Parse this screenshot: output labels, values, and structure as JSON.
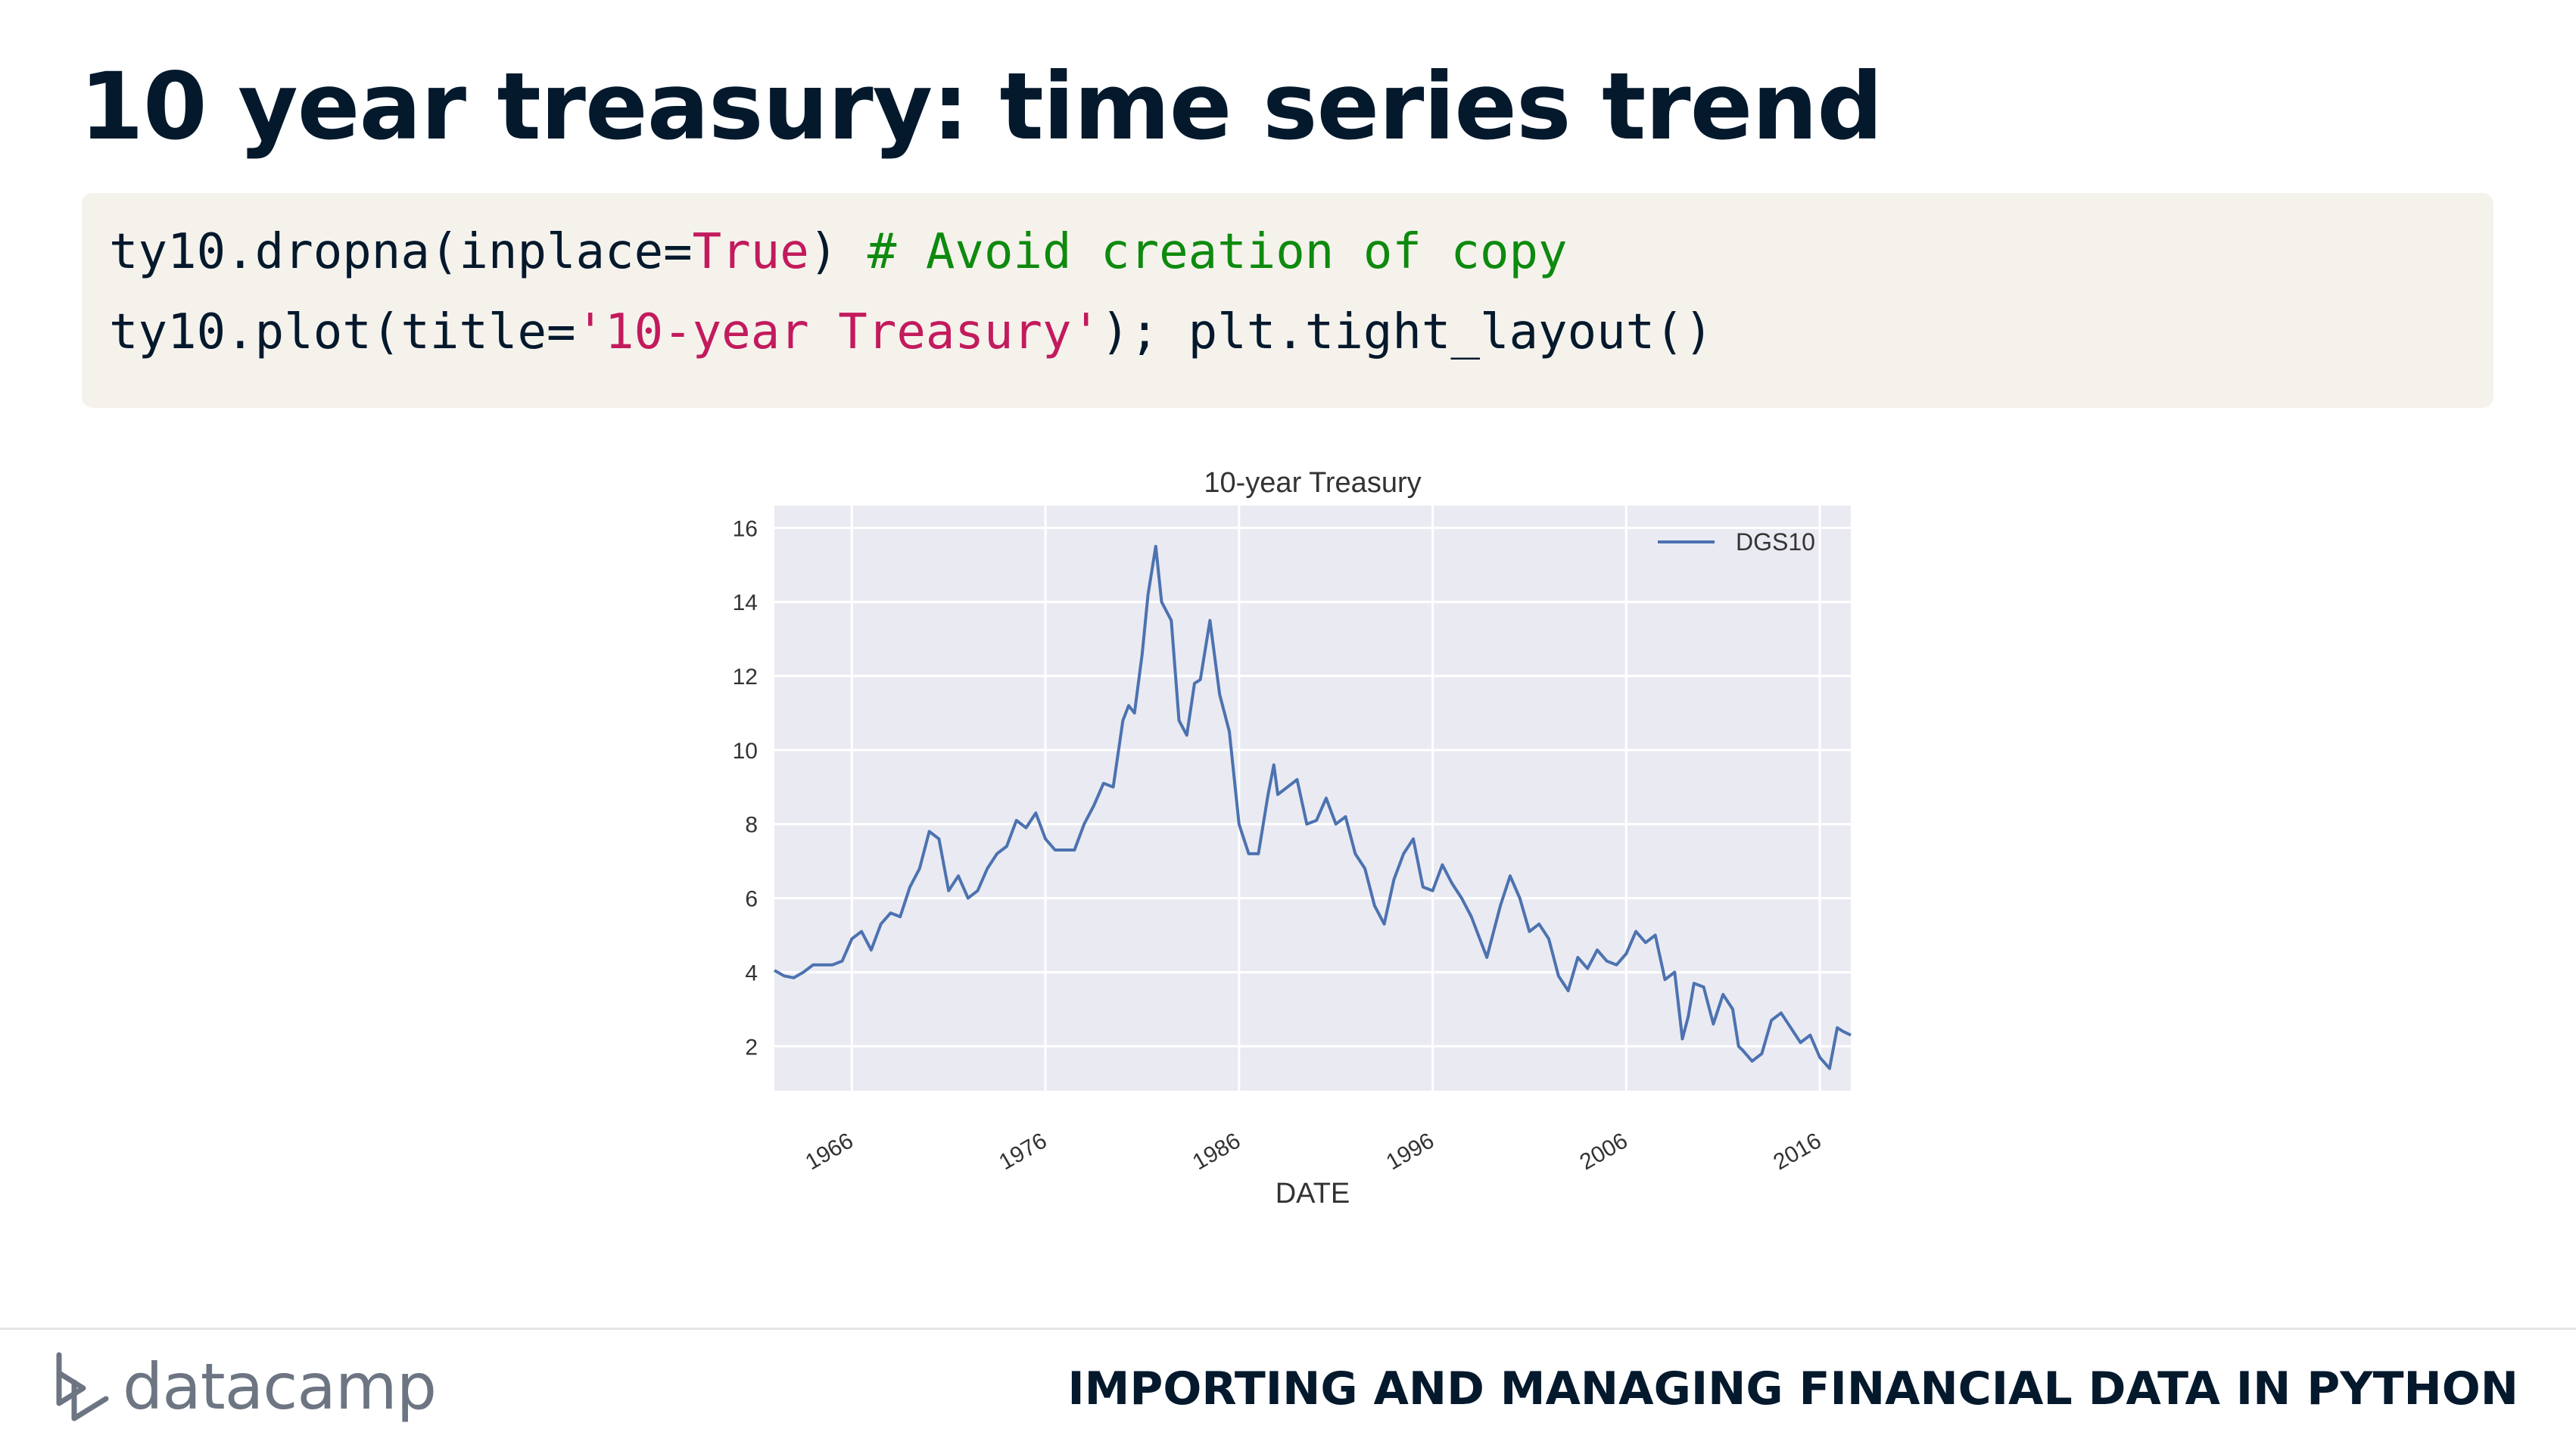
{
  "slide": {
    "title": "10 year treasury: time series trend"
  },
  "code": {
    "line1": {
      "prefix": "ty10.dropna(inplace=",
      "keyword": "True",
      "suffix": ") ",
      "comment": "# Avoid creation of copy"
    },
    "line2": {
      "prefix": "ty10.plot(title=",
      "string": "'10-year Treasury'",
      "suffix": "); plt.tight_layout()"
    }
  },
  "footer": {
    "logo_text": "datacamp",
    "course_title": "IMPORTING AND MANAGING FINANCIAL DATA IN PYTHON"
  },
  "colors": {
    "line": "#4c72b0",
    "plot_bg": "#eaeaf2",
    "grid": "#ffffff"
  },
  "chart_data": {
    "type": "line",
    "title": "10-year Treasury",
    "xlabel": "DATE",
    "ylabel": "",
    "xlim": [
      1962,
      2017.6
    ],
    "ylim": [
      0.8,
      16.6
    ],
    "xticks": [
      1966,
      1976,
      1986,
      1996,
      2006,
      2016
    ],
    "xtick_labels": [
      "1966",
      "1976",
      "1986",
      "1996",
      "2006",
      "2016"
    ],
    "yticks": [
      2,
      4,
      6,
      8,
      10,
      12,
      14,
      16
    ],
    "ytick_labels": [
      "2",
      "4",
      "6",
      "8",
      "10",
      "12",
      "14",
      "16"
    ],
    "grid": true,
    "legend": {
      "position": "top-right",
      "entries": [
        "DGS10"
      ]
    },
    "series": [
      {
        "name": "DGS10",
        "x": [
          1962.0,
          1962.5,
          1963.0,
          1963.5,
          1964.0,
          1964.5,
          1965.0,
          1965.5,
          1966.0,
          1966.5,
          1967.0,
          1967.5,
          1968.0,
          1968.5,
          1969.0,
          1969.5,
          1970.0,
          1970.5,
          1971.0,
          1971.5,
          1972.0,
          1972.5,
          1973.0,
          1973.5,
          1974.0,
          1974.5,
          1975.0,
          1975.5,
          1976.0,
          1976.5,
          1977.0,
          1977.5,
          1978.0,
          1978.5,
          1979.0,
          1979.5,
          1980.0,
          1980.3,
          1980.6,
          1981.0,
          1981.3,
          1981.7,
          1982.0,
          1982.5,
          1982.9,
          1983.3,
          1983.7,
          1984.0,
          1984.5,
          1985.0,
          1985.5,
          1986.0,
          1986.5,
          1987.0,
          1987.5,
          1987.8,
          1988.0,
          1988.5,
          1989.0,
          1989.5,
          1990.0,
          1990.5,
          1991.0,
          1991.5,
          1992.0,
          1992.5,
          1993.0,
          1993.5,
          1994.0,
          1994.5,
          1995.0,
          1995.5,
          1996.0,
          1996.5,
          1997.0,
          1997.5,
          1998.0,
          1998.8,
          1999.5,
          2000.0,
          2000.5,
          2001.0,
          2001.5,
          2002.0,
          2002.5,
          2003.0,
          2003.5,
          2004.0,
          2004.5,
          2005.0,
          2005.5,
          2006.0,
          2006.5,
          2007.0,
          2007.5,
          2008.0,
          2008.5,
          2008.9,
          2009.2,
          2009.5,
          2010.0,
          2010.5,
          2011.0,
          2011.5,
          2011.8,
          2012.0,
          2012.5,
          2013.0,
          2013.5,
          2014.0,
          2014.5,
          2015.0,
          2015.5,
          2016.0,
          2016.5,
          2016.9,
          2017.2,
          2017.6
        ],
        "values": [
          4.05,
          3.9,
          3.85,
          4.0,
          4.2,
          4.2,
          4.2,
          4.3,
          4.9,
          5.1,
          4.6,
          5.3,
          5.6,
          5.5,
          6.3,
          6.8,
          7.8,
          7.6,
          6.2,
          6.6,
          6.0,
          6.2,
          6.8,
          7.2,
          7.4,
          8.1,
          7.9,
          8.3,
          7.6,
          7.3,
          7.3,
          7.3,
          8.0,
          8.5,
          9.1,
          9.0,
          10.8,
          11.2,
          11.0,
          12.6,
          14.2,
          15.5,
          14.0,
          13.5,
          10.8,
          10.4,
          11.8,
          11.9,
          13.5,
          11.5,
          10.5,
          8.0,
          7.2,
          7.2,
          8.8,
          9.6,
          8.8,
          9.0,
          9.2,
          8.0,
          8.1,
          8.7,
          8.0,
          8.2,
          7.2,
          6.8,
          5.8,
          5.3,
          6.5,
          7.2,
          7.6,
          6.3,
          6.2,
          6.9,
          6.4,
          6.0,
          5.5,
          4.4,
          5.8,
          6.6,
          6.0,
          5.1,
          5.3,
          4.9,
          3.9,
          3.5,
          4.4,
          4.1,
          4.6,
          4.3,
          4.2,
          4.5,
          5.1,
          4.8,
          5.0,
          3.8,
          4.0,
          2.2,
          2.8,
          3.7,
          3.6,
          2.6,
          3.4,
          3.0,
          2.0,
          1.9,
          1.6,
          1.8,
          2.7,
          2.9,
          2.5,
          2.1,
          2.3,
          1.7,
          1.4,
          2.5,
          2.4,
          2.3
        ]
      }
    ]
  }
}
